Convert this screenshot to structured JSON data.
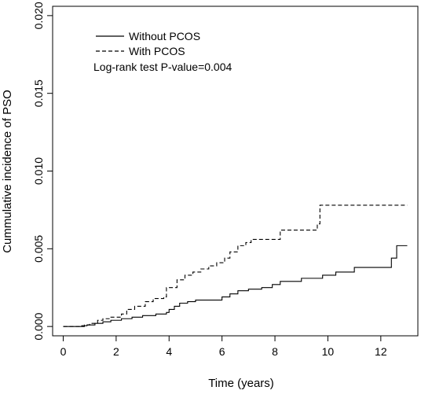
{
  "chart_data": {
    "type": "line",
    "title": "",
    "xlabel": "Time (years)",
    "ylabel": "Cummulative incidence of PSO",
    "xlim": [
      -0.4,
      13.4
    ],
    "ylim": [
      -0.0006,
      0.0206
    ],
    "x_ticks": [
      0,
      2,
      4,
      6,
      8,
      10,
      12
    ],
    "x_tick_labels": [
      "0",
      "2",
      "4",
      "6",
      "8",
      "10",
      "12"
    ],
    "y_ticks": [
      0.0,
      0.005,
      0.01,
      0.015,
      0.02
    ],
    "y_tick_labels": [
      "0.000",
      "0.005",
      "0.010",
      "0.015",
      "0.020"
    ],
    "grid": false,
    "legend_position": "top-left",
    "annotation": "Log-rank test P-value=0.004",
    "series": [
      {
        "name": "Without PCOS",
        "line_style": "solid",
        "x": [
          0,
          0.7,
          0.9,
          1.2,
          1.5,
          1.8,
          2.2,
          2.6,
          3.0,
          3.5,
          3.9,
          4.0,
          4.2,
          4.4,
          4.7,
          5.0,
          5.5,
          6.0,
          6.3,
          6.6,
          7.0,
          7.5,
          7.9,
          8.2,
          9.0,
          9.8,
          10.3,
          11.0,
          12.0,
          12.4,
          12.6,
          13.0
        ],
        "y": [
          0,
          5e-05,
          0.0001,
          0.0002,
          0.0003,
          0.0004,
          0.0005,
          0.0006,
          0.0007,
          0.0008,
          0.0009,
          0.0011,
          0.0013,
          0.0015,
          0.0016,
          0.0017,
          0.0017,
          0.0019,
          0.0021,
          0.0023,
          0.0024,
          0.0025,
          0.0027,
          0.0029,
          0.0031,
          0.0033,
          0.0035,
          0.0038,
          0.0038,
          0.0044,
          0.0052,
          0.0052
        ]
      },
      {
        "name": "With PCOS",
        "line_style": "dashed",
        "x": [
          0,
          0.8,
          1.0,
          1.3,
          1.5,
          1.8,
          2.2,
          2.4,
          2.7,
          3.1,
          3.4,
          3.8,
          3.9,
          4.3,
          4.6,
          4.9,
          5.2,
          5.5,
          5.8,
          6.1,
          6.3,
          6.6,
          6.9,
          7.1,
          8.2,
          8.3,
          9.6,
          9.7,
          13.0
        ],
        "y": [
          0,
          0.0001,
          0.0002,
          0.0004,
          0.0005,
          0.0006,
          0.0008,
          0.0011,
          0.0013,
          0.0016,
          0.0018,
          0.0019,
          0.0025,
          0.003,
          0.0033,
          0.0035,
          0.0037,
          0.0039,
          0.0041,
          0.0044,
          0.0048,
          0.0052,
          0.0054,
          0.0056,
          0.0062,
          0.0062,
          0.0066,
          0.0078,
          0.0078
        ]
      }
    ]
  }
}
